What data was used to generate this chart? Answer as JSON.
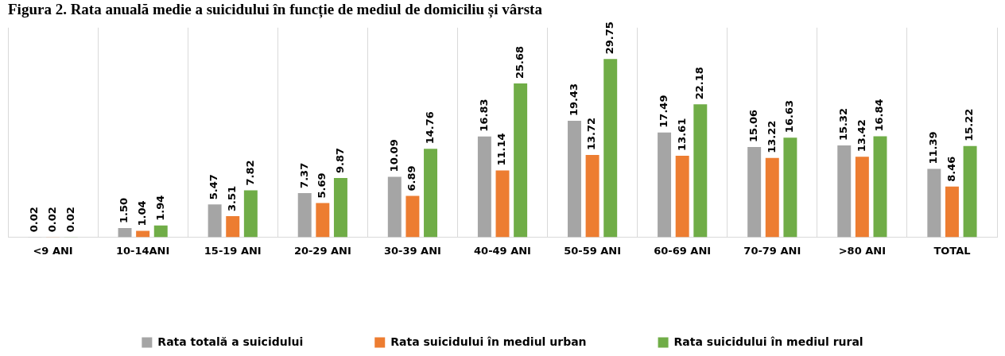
{
  "chart_data": {
    "type": "bar",
    "title": "Figura 2. Rata anuală medie a suicidului în funcție de mediul de domiciliu și vârsta",
    "categories": [
      "<9 ANI",
      "10-14ANI",
      "15-19 ANI",
      "20-29 ANI",
      "30-39 ANI",
      "40-49 ANI",
      "50-59 ANI",
      "60-69 ANI",
      "70-79 ANI",
      ">80 ANI",
      "TOTAL"
    ],
    "series": [
      {
        "name": "Rata totală a suicidului",
        "color": "#a5a5a5",
        "values": [
          0.02,
          1.5,
          5.47,
          7.37,
          10.09,
          16.83,
          19.43,
          17.49,
          15.06,
          15.32,
          11.39
        ],
        "value_labels": [
          "0.02",
          "1.50",
          "5.47",
          "7.37",
          "10.09",
          "16.83",
          "19.43",
          "17.49",
          "15.06",
          "15.32",
          "11.39"
        ]
      },
      {
        "name": "Rata suicidului în mediul urban",
        "color": "#ed7d31",
        "values": [
          0.02,
          1.04,
          3.51,
          5.69,
          6.89,
          11.14,
          13.72,
          13.61,
          13.22,
          13.42,
          8.46
        ],
        "value_labels": [
          "0.02",
          "1.04",
          "3.51",
          "5.69",
          "6.89",
          "11.14",
          "13.72",
          "13.61",
          "13.22",
          "13.42",
          "8.46"
        ]
      },
      {
        "name": "Rata suicidului în mediul rural",
        "color": "#70ad47",
        "values": [
          0.02,
          1.94,
          7.82,
          9.87,
          14.76,
          25.68,
          29.75,
          22.18,
          16.63,
          16.84,
          15.22
        ],
        "value_labels": [
          "0.02",
          "1.94",
          "7.82",
          "9.87",
          "14.76",
          "25.68",
          "29.75",
          "22.18",
          "16.63",
          "16.84",
          "15.22"
        ]
      }
    ],
    "grid": "x",
    "legend": "bottom"
  }
}
